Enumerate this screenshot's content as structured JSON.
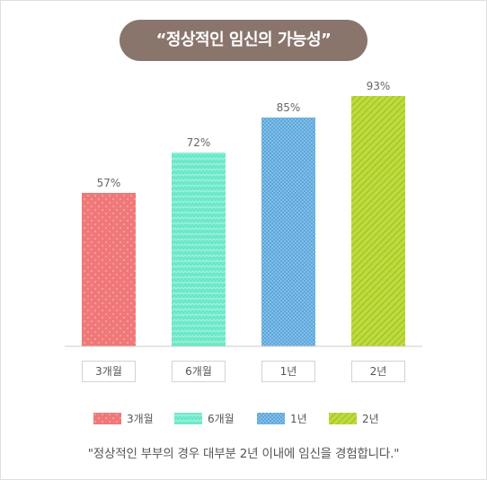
{
  "title": "“정상적인 임신의 가능성”",
  "caption": "\"정상적인 부부의 경우 대부분 2년 이내에 임신을 경험합니다.\"",
  "colors": {
    "background": "#ffffff",
    "title_pill": "#8a756d",
    "axis": "#cccccc",
    "value_label": "#666666"
  },
  "chart_data": {
    "type": "bar",
    "categories": [
      "3개월",
      "6개월",
      "1년",
      "2년"
    ],
    "values": [
      57,
      72,
      85,
      93
    ],
    "value_labels": [
      "57%",
      "72%",
      "85%",
      "93%"
    ],
    "colors": [
      "#f07878",
      "#6de8c8",
      "#5ba6dc",
      "#bddb3c"
    ],
    "patterns": [
      "dots",
      "zigzag",
      "checker",
      "diagonal-stripes"
    ],
    "ylim": [
      0,
      100
    ],
    "grid": false,
    "legend": "bottom-center",
    "legend_entries": [
      "3개월",
      "6개월",
      "1년",
      "2년"
    ]
  }
}
